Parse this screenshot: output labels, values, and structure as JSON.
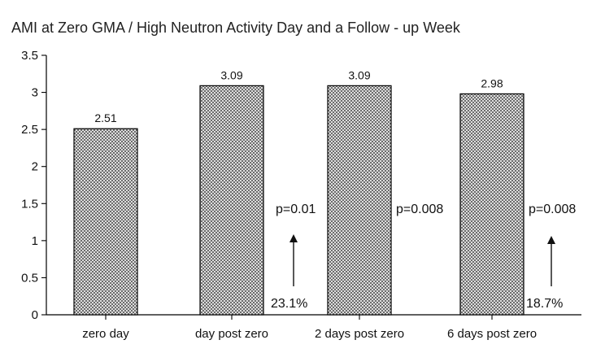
{
  "chart_data": {
    "type": "bar",
    "title": "AMI at Zero GMA / High Neutron Activity Day and a Follow - up Week",
    "xlabel": "",
    "ylabel": "",
    "categories": [
      "zero day",
      "day post zero",
      "2 days post zero",
      "6 days post zero"
    ],
    "values": [
      2.51,
      3.09,
      3.09,
      2.98
    ],
    "value_labels": [
      "2.51",
      "3.09",
      "3.09",
      "2.98"
    ],
    "ylim": [
      0,
      3.5
    ],
    "yticks": [
      0,
      0.5,
      1,
      1.5,
      2,
      2.5,
      3,
      3.5
    ],
    "ytick_labels": [
      "0",
      "0.5",
      "1",
      "1.5",
      "2",
      "2.5",
      "3",
      "3.5"
    ],
    "grid": false,
    "bar_fill": "crosshatch-gray",
    "annotations": {
      "p_values": [
        {
          "text": "p=0.01",
          "near_category": 1
        },
        {
          "text": "p=0.008",
          "near_category": 2
        },
        {
          "text": "p=0.008",
          "near_category": 3
        }
      ],
      "percent_changes": [
        {
          "text": "23.1%",
          "near_category": 1
        },
        {
          "text": "18.7%",
          "near_category": 3
        }
      ]
    },
    "colors": {
      "bar_stroke": "#000000",
      "hatch": "#555555",
      "text": "#111111"
    }
  }
}
